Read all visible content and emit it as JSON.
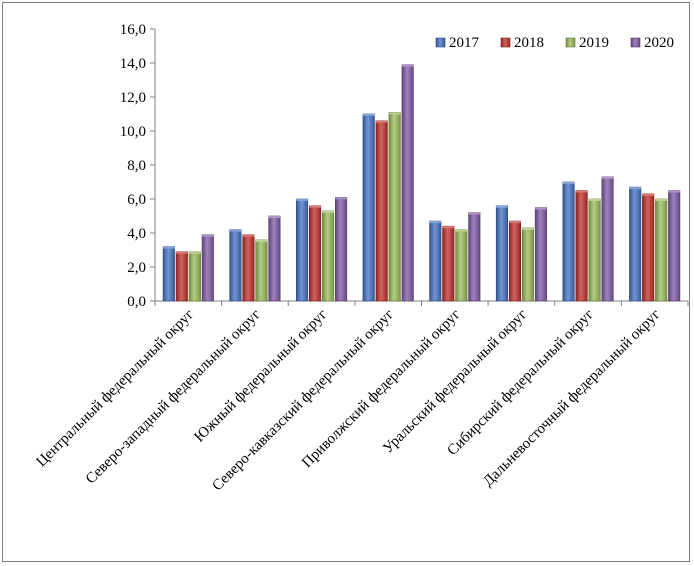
{
  "chart_data": {
    "type": "bar",
    "title": "",
    "xlabel": "",
    "ylabel": "",
    "ylim": [
      0,
      16
    ],
    "ytick_step": 2,
    "ytick_labels": [
      "0,0",
      "2,0",
      "4,0",
      "6,0",
      "8,0",
      "10,0",
      "12,0",
      "14,0",
      "16,0"
    ],
    "grid": false,
    "legend_position": "top-right",
    "categories": [
      "Центральный федеральный округ",
      "Северо-западный федеральный округ",
      "Южный федеральный округ",
      "Северо-кавказский федеральный округ",
      "Приволжский федеральный округ",
      "Уральский федеральный округ",
      "Сибирский федеральный округ",
      "Дальневосточный федеральный округ"
    ],
    "series": [
      {
        "name": "2017",
        "color": "#4472c4",
        "values": [
          3.2,
          4.2,
          6.0,
          11.0,
          4.7,
          5.6,
          7.0,
          6.7
        ]
      },
      {
        "name": "2018",
        "color": "#c0302b",
        "values": [
          2.9,
          3.9,
          5.6,
          10.6,
          4.4,
          4.7,
          6.5,
          6.3
        ]
      },
      {
        "name": "2019",
        "color": "#9bbb59",
        "values": [
          2.9,
          3.6,
          5.3,
          11.1,
          4.2,
          4.3,
          6.0,
          6.0
        ]
      },
      {
        "name": "2020",
        "color": "#7f5aa6",
        "values": [
          3.9,
          5.0,
          6.1,
          13.9,
          5.2,
          5.5,
          7.3,
          6.5
        ]
      }
    ]
  }
}
